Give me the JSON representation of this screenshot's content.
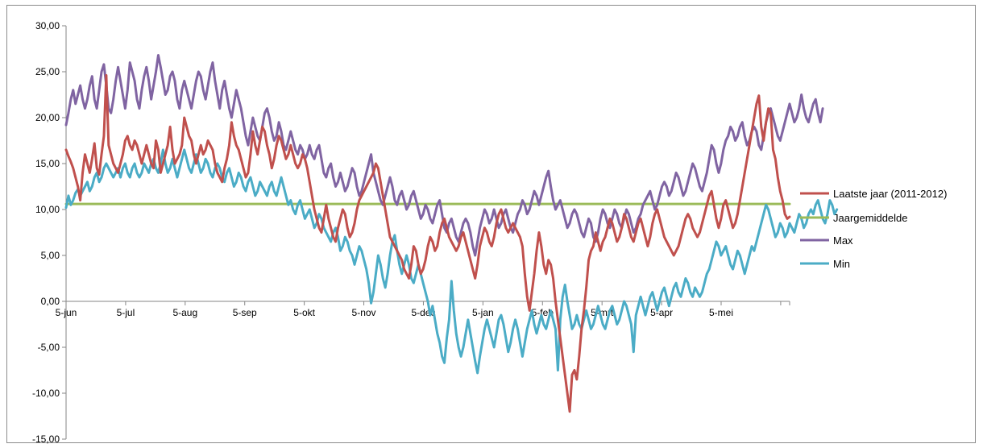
{
  "chart_data": {
    "type": "line",
    "title": "",
    "xlabel": "",
    "ylabel": "",
    "ylim": [
      -15,
      30
    ],
    "yticks": [
      "30,00",
      "25,00",
      "20,00",
      "15,00",
      "10,00",
      "5,00",
      "0,00",
      "-5,00",
      "-10,00",
      "-15,00"
    ],
    "x_tick_labels": [
      "5-jun",
      "5-jul",
      "5-aug",
      "5-sep",
      "5-okt",
      "5-nov",
      "5-dec",
      "5-jan",
      "5-feb",
      "5-mrt",
      "5-apr",
      "5-mei"
    ],
    "grid": false,
    "legend_position": "right",
    "series": [
      {
        "name": "Laatste jaar (2011-2012)",
        "color": "#c0504d",
        "values": [
          16.5,
          15.8,
          15.2,
          14.5,
          13.5,
          12.5,
          11.0,
          14.0,
          16.0,
          15.0,
          14.0,
          15.5,
          17.2,
          14.5,
          13.8,
          16.0,
          18.0,
          24.6,
          17.0,
          16.0,
          15.0,
          14.5,
          14.0,
          15.0,
          16.0,
          17.5,
          18.0,
          17.0,
          16.5,
          17.5,
          17.0,
          16.0,
          15.0,
          16.0,
          17.0,
          16.0,
          15.0,
          14.5,
          17.5,
          16.5,
          14.0,
          15.0,
          16.0,
          17.0,
          19.0,
          16.5,
          15.0,
          15.5,
          16.0,
          17.0,
          20.0,
          19.0,
          18.0,
          17.5,
          16.0,
          15.0,
          16.0,
          17.0,
          16.0,
          16.5,
          17.5,
          17.0,
          16.5,
          15.0,
          14.0,
          13.5,
          13.0,
          14.5,
          15.5,
          17.0,
          19.5,
          18.0,
          17.0,
          16.5,
          15.5,
          14.5,
          13.5,
          14.0,
          16.0,
          18.5,
          17.0,
          16.0,
          17.5,
          19.0,
          18.5,
          17.0,
          16.0,
          14.5,
          15.5,
          17.0,
          18.0,
          17.5,
          16.5,
          15.5,
          16.0,
          17.0,
          16.0,
          15.0,
          14.5,
          15.0,
          16.0,
          15.5,
          14.5,
          13.0,
          11.5,
          10.0,
          9.0,
          8.0,
          7.5,
          9.0,
          10.5,
          9.0,
          8.0,
          7.0,
          6.5,
          8.0,
          9.0,
          10.0,
          9.5,
          8.0,
          7.0,
          7.5,
          8.5,
          10.0,
          11.0,
          11.5,
          12.0,
          12.5,
          13.0,
          13.5,
          14.0,
          15.0,
          14.5,
          13.0,
          11.5,
          10.0,
          8.5,
          7.0,
          6.5,
          6.0,
          5.5,
          5.0,
          4.5,
          3.5,
          3.0,
          2.5,
          4.0,
          6.0,
          5.5,
          4.0,
          3.0,
          3.5,
          4.5,
          6.0,
          7.0,
          6.5,
          5.5,
          6.0,
          7.5,
          8.5,
          9.0,
          8.0,
          7.0,
          6.5,
          6.0,
          5.5,
          6.0,
          7.0,
          7.5,
          6.5,
          5.5,
          4.5,
          3.5,
          2.5,
          4.0,
          6.0,
          7.0,
          8.0,
          7.5,
          6.5,
          6.0,
          7.0,
          8.5,
          9.5,
          10.0,
          9.0,
          8.0,
          7.5,
          8.0,
          8.5,
          8.0,
          7.5,
          7.0,
          6.0,
          3.0,
          0.5,
          -1.0,
          1.0,
          3.0,
          5.5,
          7.5,
          6.0,
          4.0,
          3.0,
          4.5,
          4.0,
          2.5,
          0.0,
          -2.0,
          -4.0,
          -6.0,
          -8.0,
          -10.0,
          -12.0,
          -8.0,
          -7.5,
          -8.5,
          -6.0,
          -3.0,
          -1.0,
          1.5,
          4.5,
          5.5,
          6.0,
          7.5,
          6.5,
          5.5,
          6.5,
          7.0,
          8.0,
          9.0,
          8.5,
          7.5,
          6.5,
          7.0,
          8.0,
          9.5,
          9.0,
          8.0,
          7.0,
          6.5,
          7.5,
          8.5,
          9.0,
          8.0,
          7.0,
          6.0,
          7.0,
          8.5,
          9.5,
          10.0,
          9.0,
          8.0,
          7.0,
          6.5,
          6.0,
          5.5,
          5.0,
          5.5,
          6.0,
          7.0,
          8.0,
          9.0,
          9.5,
          9.0,
          8.0,
          7.5,
          7.0,
          7.5,
          8.5,
          9.5,
          10.5,
          11.5,
          12.0,
          10.5,
          9.0,
          8.0,
          9.0,
          10.5,
          11.0,
          10.0,
          9.0,
          8.0,
          8.5,
          9.5,
          11.0,
          12.5,
          14.0,
          15.5,
          17.0,
          18.5,
          20.0,
          21.5,
          22.4,
          19.0,
          17.5,
          19.5,
          21.0,
          20.5,
          16.5,
          15.5,
          13.5,
          12.0,
          11.0,
          9.5,
          9.0,
          9.2
        ]
      },
      {
        "name": "Jaargemiddelde",
        "color": "#9bbb59",
        "values": [
          10.6
        ]
      },
      {
        "name": "Max",
        "color": "#8064a2",
        "values": [
          19.2,
          20.5,
          22.0,
          23.0,
          21.5,
          22.5,
          23.5,
          22.0,
          21.0,
          22.0,
          23.5,
          24.5,
          22.0,
          21.0,
          23.0,
          25.0,
          25.8,
          23.5,
          21.0,
          20.5,
          22.0,
          24.0,
          25.5,
          24.0,
          22.5,
          21.0,
          23.0,
          26.0,
          25.0,
          24.0,
          22.0,
          21.0,
          23.0,
          24.5,
          25.5,
          24.0,
          22.0,
          23.5,
          25.0,
          26.8,
          25.5,
          24.0,
          22.5,
          23.0,
          24.5,
          25.0,
          24.0,
          22.0,
          21.0,
          23.0,
          24.0,
          23.0,
          22.0,
          21.0,
          22.5,
          24.0,
          25.0,
          24.5,
          23.0,
          22.0,
          23.5,
          25.0,
          26.0,
          24.0,
          22.5,
          21.0,
          23.0,
          24.0,
          22.5,
          21.0,
          20.0,
          21.5,
          23.0,
          22.0,
          21.0,
          19.5,
          18.0,
          17.0,
          18.5,
          20.0,
          19.0,
          18.0,
          17.5,
          19.0,
          20.5,
          21.0,
          20.0,
          18.5,
          17.5,
          18.0,
          19.5,
          18.5,
          17.0,
          16.5,
          17.5,
          18.5,
          17.5,
          16.5,
          16.0,
          17.0,
          16.5,
          15.5,
          16.0,
          17.0,
          16.0,
          15.5,
          16.5,
          17.0,
          15.5,
          14.0,
          13.5,
          14.5,
          15.0,
          13.5,
          12.5,
          13.0,
          14.0,
          13.0,
          12.0,
          12.5,
          13.5,
          14.5,
          14.0,
          12.5,
          11.5,
          12.0,
          13.0,
          14.0,
          15.0,
          16.0,
          14.0,
          13.0,
          12.0,
          11.0,
          10.5,
          11.5,
          12.5,
          13.5,
          12.5,
          11.0,
          10.5,
          11.5,
          12.0,
          11.0,
          10.0,
          10.5,
          11.5,
          12.0,
          11.0,
          10.0,
          9.0,
          9.5,
          10.5,
          10.0,
          9.0,
          8.5,
          9.5,
          10.5,
          11.0,
          9.5,
          8.0,
          7.5,
          8.5,
          9.0,
          8.0,
          7.0,
          6.5,
          7.5,
          8.5,
          9.0,
          8.5,
          7.5,
          6.0,
          5.0,
          6.5,
          8.0,
          9.0,
          10.0,
          9.5,
          8.5,
          9.0,
          10.0,
          9.0,
          8.0,
          8.5,
          9.5,
          10.0,
          9.0,
          8.0,
          7.5,
          8.5,
          9.5,
          10.0,
          11.0,
          10.5,
          9.5,
          10.0,
          11.0,
          12.0,
          11.5,
          10.5,
          11.5,
          12.5,
          13.5,
          14.2,
          12.5,
          11.0,
          10.0,
          10.5,
          11.0,
          10.0,
          9.0,
          8.0,
          8.5,
          9.5,
          10.0,
          9.5,
          8.5,
          7.5,
          7.0,
          8.0,
          9.0,
          8.5,
          7.0,
          6.5,
          7.5,
          9.0,
          10.0,
          9.5,
          8.5,
          8.0,
          9.0,
          10.0,
          9.5,
          8.5,
          8.0,
          9.0,
          10.0,
          9.5,
          8.5,
          7.5,
          8.0,
          9.0,
          9.5,
          10.5,
          11.0,
          11.5,
          12.0,
          11.0,
          10.0,
          10.5,
          11.5,
          12.5,
          13.0,
          12.5,
          11.5,
          12.0,
          13.0,
          14.0,
          13.5,
          12.5,
          11.5,
          12.0,
          13.0,
          14.0,
          15.0,
          14.5,
          13.5,
          12.5,
          12.0,
          13.0,
          14.0,
          15.5,
          17.0,
          16.5,
          15.0,
          14.0,
          15.0,
          16.5,
          17.5,
          18.0,
          19.0,
          18.5,
          17.5,
          18.0,
          19.0,
          19.5,
          18.0,
          17.0,
          17.5,
          18.5,
          19.0,
          18.5,
          17.0,
          16.5,
          18.0,
          19.5,
          20.5,
          21.0,
          20.0,
          19.0,
          18.0,
          17.5,
          18.5,
          19.5,
          20.5,
          21.5,
          20.5,
          19.5,
          20.0,
          21.0,
          22.5,
          21.0,
          20.0,
          19.5,
          20.5,
          21.5,
          22.0,
          20.5,
          19.5,
          21.0
        ]
      },
      {
        "name": "Min",
        "color": "#4bacc6",
        "values": [
          10.2,
          11.5,
          10.5,
          11.0,
          11.8,
          12.2,
          11.5,
          12.0,
          12.5,
          13.0,
          12.0,
          12.5,
          13.5,
          14.0,
          13.0,
          13.5,
          14.5,
          15.0,
          14.5,
          14.0,
          13.5,
          14.0,
          14.5,
          13.5,
          14.5,
          15.0,
          14.0,
          13.5,
          14.5,
          15.0,
          14.0,
          13.5,
          14.0,
          15.0,
          14.5,
          14.0,
          15.0,
          15.5,
          14.5,
          14.0,
          15.0,
          16.5,
          15.0,
          14.0,
          14.5,
          15.5,
          14.5,
          13.5,
          14.5,
          15.5,
          16.5,
          15.5,
          14.5,
          14.0,
          15.0,
          16.0,
          15.0,
          14.0,
          14.5,
          15.5,
          15.0,
          14.0,
          13.5,
          14.5,
          15.0,
          14.5,
          13.5,
          13.0,
          14.0,
          14.5,
          13.5,
          12.5,
          13.0,
          14.0,
          13.5,
          12.5,
          12.0,
          13.0,
          13.5,
          12.5,
          11.5,
          12.0,
          13.0,
          12.5,
          12.0,
          11.5,
          12.5,
          13.0,
          12.0,
          11.5,
          12.5,
          13.5,
          12.5,
          11.5,
          10.5,
          11.0,
          10.0,
          9.5,
          10.5,
          11.0,
          10.0,
          9.0,
          9.5,
          10.0,
          9.0,
          8.0,
          8.5,
          9.5,
          9.0,
          8.0,
          7.5,
          7.0,
          6.5,
          7.5,
          8.0,
          7.0,
          5.5,
          6.0,
          7.0,
          6.5,
          5.5,
          5.0,
          4.0,
          5.0,
          6.0,
          5.5,
          4.5,
          3.5,
          2.0,
          -0.2,
          1.0,
          3.0,
          5.0,
          4.0,
          2.5,
          1.5,
          3.0,
          5.0,
          6.5,
          7.2,
          5.5,
          4.0,
          3.0,
          4.0,
          5.0,
          4.0,
          2.5,
          2.0,
          3.0,
          4.0,
          3.0,
          2.0,
          1.0,
          0.0,
          -1.5,
          -0.5,
          -2.0,
          -3.5,
          -4.5,
          -6.0,
          -6.7,
          -4.0,
          -2.0,
          2.2,
          -1.0,
          -3.5,
          -5.0,
          -6.0,
          -5.0,
          -3.5,
          -2.0,
          -3.5,
          -5.0,
          -6.5,
          -7.8,
          -6.0,
          -4.5,
          -3.0,
          -2.0,
          -3.0,
          -4.0,
          -5.0,
          -3.5,
          -2.0,
          -1.5,
          -2.5,
          -4.0,
          -5.5,
          -4.5,
          -3.0,
          -2.0,
          -3.0,
          -4.5,
          -6.0,
          -4.5,
          -3.0,
          -2.0,
          -1.0,
          -2.5,
          -3.5,
          -2.5,
          -1.5,
          -2.5,
          -3.0,
          -2.0,
          -1.0,
          -2.0,
          -3.0,
          -7.5,
          -2.0,
          0.5,
          1.8,
          0.0,
          -1.5,
          -3.0,
          -2.5,
          -1.5,
          -2.5,
          -3.0,
          -2.0,
          -1.0,
          -2.0,
          -3.0,
          -2.5,
          -1.5,
          -0.5,
          -1.5,
          -2.5,
          -3.0,
          -2.0,
          -1.0,
          -0.5,
          -1.5,
          -2.5,
          -2.0,
          -1.0,
          0.0,
          -0.5,
          -1.5,
          -2.5,
          -5.5,
          -1.5,
          -0.5,
          0.5,
          -0.5,
          -1.5,
          -0.5,
          0.5,
          1.0,
          0.0,
          -1.0,
          0.0,
          1.0,
          1.5,
          0.5,
          -0.5,
          0.5,
          1.5,
          2.0,
          1.0,
          0.5,
          1.5,
          2.5,
          2.0,
          1.0,
          0.5,
          1.5,
          1.0,
          0.5,
          1.0,
          2.0,
          3.0,
          3.5,
          4.5,
          5.5,
          6.5,
          6.0,
          5.0,
          5.5,
          6.0,
          5.0,
          4.0,
          3.5,
          4.5,
          5.5,
          5.0,
          4.0,
          3.0,
          4.0,
          5.0,
          6.0,
          5.5,
          6.5,
          7.5,
          8.5,
          9.5,
          10.5,
          10.0,
          9.0,
          8.0,
          7.0,
          7.5,
          8.5,
          8.0,
          7.0,
          7.5,
          8.5,
          8.0,
          7.5,
          8.5,
          9.5,
          9.0,
          8.0,
          8.5,
          9.5,
          10.0,
          9.5,
          10.5,
          11.0,
          10.0,
          9.0,
          8.5,
          9.5,
          11.0,
          10.5,
          9.5,
          10.0
        ]
      }
    ]
  }
}
